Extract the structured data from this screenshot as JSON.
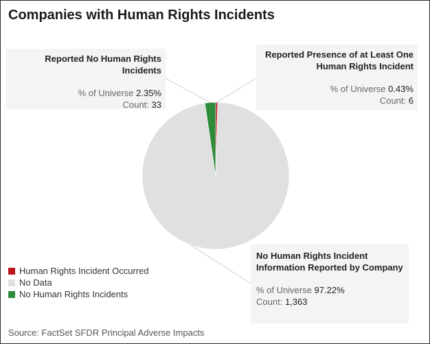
{
  "chart_data": {
    "type": "pie",
    "title": "Companies with Human Rights Incidents",
    "slices": [
      {
        "name": "Human Rights Incident Occurred",
        "value": 0.43,
        "color": "#c0141c"
      },
      {
        "name": "No Human Rights Incidents",
        "value": 2.35,
        "color": "#2e8b3a"
      },
      {
        "name": "No Data",
        "value": 97.22,
        "color": "#e0e0e0"
      }
    ],
    "legend_position": "bottom-left",
    "legend": [
      {
        "label": "Human Rights Incident Occurred",
        "color": "#c0141c"
      },
      {
        "label": "No Data",
        "color": "#e0e0e0"
      },
      {
        "label": "No Human Rights Incidents",
        "color": "#2e8b3a"
      }
    ],
    "callouts": {
      "left": {
        "label": "Reported No Human Rights Incidents",
        "pct_label": "% of Universe",
        "pct": "2.35%",
        "count_label": "Count:",
        "count": "33"
      },
      "right": {
        "label": "Reported Presence of at Least One Human Rights Incident",
        "pct_label": "% of Universe",
        "pct": "0.43%",
        "count_label": "Count:",
        "count": "6"
      },
      "bottom": {
        "label": "No Human Rights Incident Information Reported by Company",
        "pct_label": "% of Universe",
        "pct": "97.22%",
        "count_label": "Count:",
        "count": "1,363"
      }
    },
    "source": "Source: FactSet SFDR Principal Adverse Impacts"
  }
}
